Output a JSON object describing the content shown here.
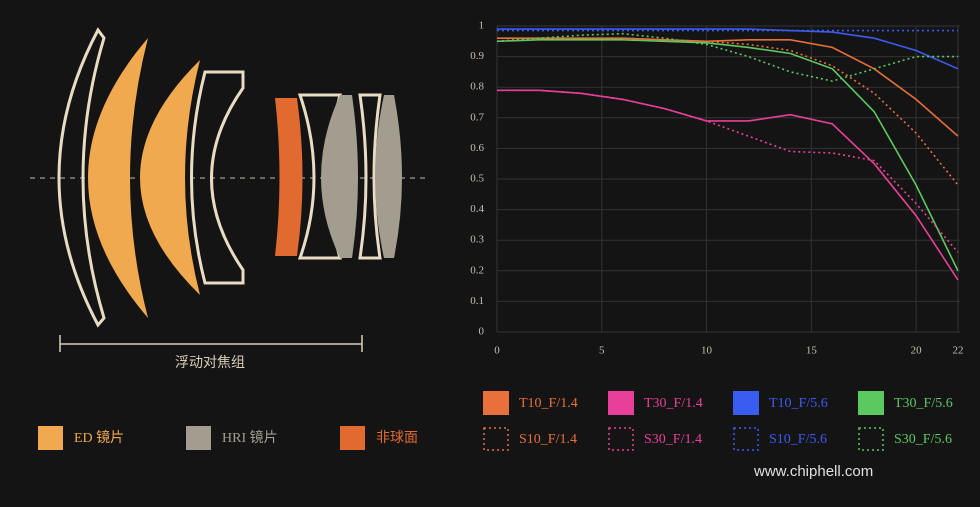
{
  "diagram": {
    "group_label": "浮动对焦组",
    "legend": [
      {
        "label": "ED 镜片",
        "color": "#f0a94e"
      },
      {
        "label": "HRI 镜片",
        "color": "#a29d8f"
      },
      {
        "label": "非球面",
        "color": "#e06a30"
      }
    ]
  },
  "chart_data": {
    "type": "line",
    "x": [
      0,
      2,
      4,
      6,
      8,
      10,
      12,
      14,
      16,
      18,
      20,
      22
    ],
    "xlim": [
      0,
      22
    ],
    "xticks": [
      0,
      5,
      10,
      15,
      20,
      22
    ],
    "ylim": [
      0,
      1
    ],
    "yticks": [
      0,
      0.1,
      0.2,
      0.3,
      0.4,
      0.5,
      0.6,
      0.7,
      0.8,
      0.9,
      1
    ],
    "grid": true,
    "series": [
      {
        "name": "T10_F/1.4",
        "color": "#e8703a",
        "style": "solid",
        "values": [
          0.96,
          0.96,
          0.96,
          0.96,
          0.955,
          0.95,
          0.955,
          0.955,
          0.93,
          0.86,
          0.76,
          0.64
        ]
      },
      {
        "name": "T30_F/1.4",
        "color": "#e8409a",
        "style": "solid",
        "values": [
          0.79,
          0.79,
          0.78,
          0.76,
          0.73,
          0.69,
          0.69,
          0.71,
          0.68,
          0.55,
          0.38,
          0.17
        ]
      },
      {
        "name": "T10_F/5.6",
        "color": "#3a5cf0",
        "style": "solid",
        "values": [
          0.99,
          0.99,
          0.99,
          0.99,
          0.99,
          0.99,
          0.99,
          0.985,
          0.98,
          0.96,
          0.92,
          0.86
        ]
      },
      {
        "name": "T30_F/5.6",
        "color": "#5cc860",
        "style": "solid",
        "values": [
          0.95,
          0.955,
          0.955,
          0.955,
          0.95,
          0.945,
          0.93,
          0.91,
          0.86,
          0.72,
          0.48,
          0.2
        ]
      },
      {
        "name": "S10_F/1.4",
        "color": "#e8703a",
        "style": "dotted",
        "values": [
          0.95,
          0.96,
          0.96,
          0.96,
          0.955,
          0.95,
          0.94,
          0.92,
          0.87,
          0.78,
          0.65,
          0.48
        ]
      },
      {
        "name": "S30_F/1.4",
        "color": "#e8409a",
        "style": "dotted",
        "values": [
          0.79,
          0.79,
          0.78,
          0.76,
          0.73,
          0.69,
          0.64,
          0.59,
          0.585,
          0.56,
          0.42,
          0.26
        ]
      },
      {
        "name": "S10_F/5.6",
        "color": "#3a5cf0",
        "style": "dotted",
        "values": [
          0.985,
          0.985,
          0.985,
          0.985,
          0.985,
          0.985,
          0.985,
          0.985,
          0.985,
          0.985,
          0.985,
          0.985
        ]
      },
      {
        "name": "S30_F/5.6",
        "color": "#5cc860",
        "style": "dotted",
        "values": [
          0.95,
          0.96,
          0.97,
          0.975,
          0.96,
          0.94,
          0.9,
          0.85,
          0.82,
          0.86,
          0.9,
          0.9
        ]
      }
    ]
  },
  "watermark": "www.chiphell.com"
}
